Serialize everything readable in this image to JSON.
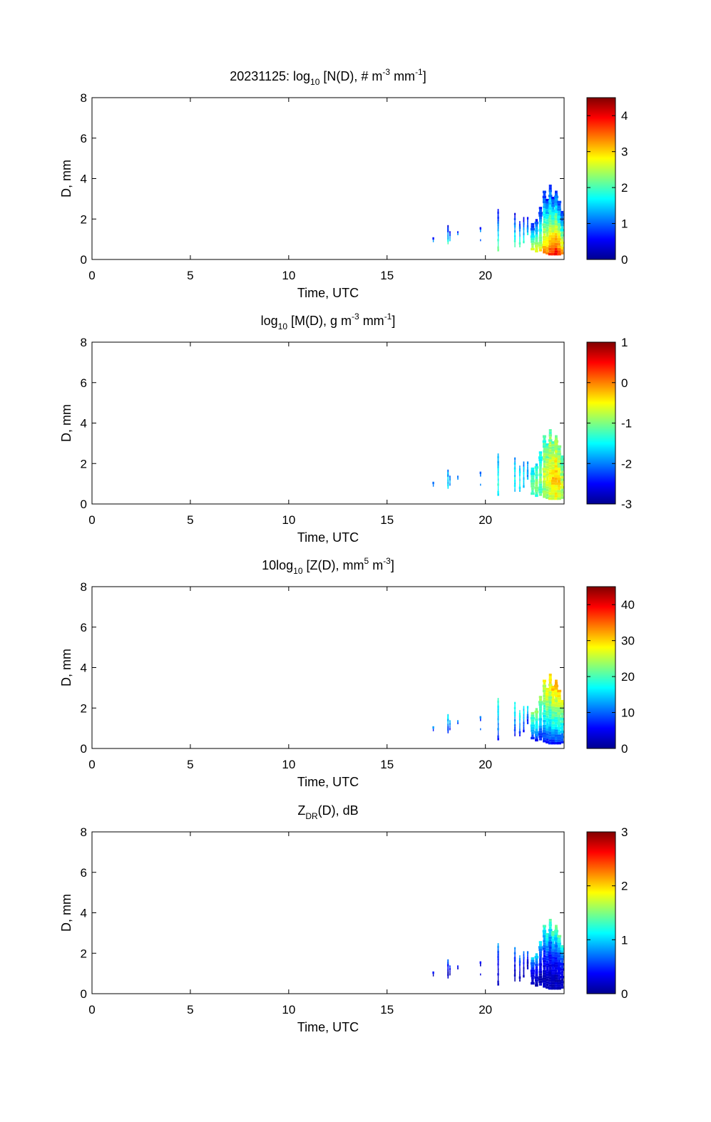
{
  "chart_data": [
    {
      "type": "heatmap",
      "title_parts": [
        {
          "text": "20231125: log",
          "shift": "none"
        },
        {
          "text": "10",
          "shift": "sub"
        },
        {
          "text": " [N(D), # m",
          "shift": "none"
        },
        {
          "text": "-3",
          "shift": "super"
        },
        {
          "text": " mm",
          "shift": "none"
        },
        {
          "text": "-1",
          "shift": "super"
        },
        {
          "text": "]",
          "shift": "none"
        }
      ],
      "xlabel": "Time, UTC",
      "ylabel": "D, mm",
      "xlim": [
        0,
        24
      ],
      "ylim": [
        0,
        8
      ],
      "xticks": [
        "0",
        "5",
        "10",
        "15",
        "20"
      ],
      "yticks": [
        "0",
        "2",
        "4",
        "6",
        "8"
      ],
      "colorbar": {
        "min": 0,
        "max": 4.5,
        "ticks": [
          "0",
          "1",
          "2",
          "3",
          "4"
        ]
      }
    },
    {
      "type": "heatmap",
      "title_parts": [
        {
          "text": "log",
          "shift": "none"
        },
        {
          "text": "10",
          "shift": "sub"
        },
        {
          "text": " [M(D), g m",
          "shift": "none"
        },
        {
          "text": "-3",
          "shift": "super"
        },
        {
          "text": " mm",
          "shift": "none"
        },
        {
          "text": "-1",
          "shift": "super"
        },
        {
          "text": "]",
          "shift": "none"
        }
      ],
      "xlabel": "Time, UTC",
      "ylabel": "D, mm",
      "xlim": [
        0,
        24
      ],
      "ylim": [
        0,
        8
      ],
      "xticks": [
        "0",
        "5",
        "10",
        "15",
        "20"
      ],
      "yticks": [
        "0",
        "2",
        "4",
        "6",
        "8"
      ],
      "colorbar": {
        "min": -3,
        "max": 1,
        "ticks": [
          "-3",
          "-2",
          "-1",
          "0",
          "1"
        ]
      }
    },
    {
      "type": "heatmap",
      "title_parts": [
        {
          "text": "10log",
          "shift": "none"
        },
        {
          "text": "10",
          "shift": "sub"
        },
        {
          "text": " [Z(D),  mm",
          "shift": "none"
        },
        {
          "text": "5",
          "shift": "super"
        },
        {
          "text": " m",
          "shift": "none"
        },
        {
          "text": "-3",
          "shift": "super"
        },
        {
          "text": "]",
          "shift": "none"
        }
      ],
      "xlabel": "Time, UTC",
      "ylabel": "D, mm",
      "xlim": [
        0,
        24
      ],
      "ylim": [
        0,
        8
      ],
      "xticks": [
        "0",
        "5",
        "10",
        "15",
        "20"
      ],
      "yticks": [
        "0",
        "2",
        "4",
        "6",
        "8"
      ],
      "colorbar": {
        "min": 0,
        "max": 45,
        "ticks": [
          "0",
          "10",
          "20",
          "30",
          "40"
        ]
      }
    },
    {
      "type": "heatmap",
      "title_parts": [
        {
          "text": "Z",
          "shift": "none"
        },
        {
          "text": "DR",
          "shift": "sub"
        },
        {
          "text": "(D), dB",
          "shift": "none"
        }
      ],
      "xlabel": "Time, UTC",
      "ylabel": "D, mm",
      "xlim": [
        0,
        24
      ],
      "ylim": [
        0,
        8
      ],
      "xticks": [
        "0",
        "5",
        "10",
        "15",
        "20"
      ],
      "yticks": [
        "0",
        "2",
        "4",
        "6",
        "8"
      ],
      "colorbar": {
        "min": 0,
        "max": 3,
        "ticks": [
          "0",
          "1",
          "2",
          "3"
        ]
      }
    }
  ],
  "events": [
    {
      "t": 17.35,
      "dmin": 0.85,
      "dmax": 1.1,
      "level": 0.35
    },
    {
      "t": 18.1,
      "dmin": 0.75,
      "dmax": 1.7,
      "level": 0.4
    },
    {
      "t": 18.2,
      "dmin": 0.9,
      "dmax": 1.4,
      "level": 0.35
    },
    {
      "t": 18.6,
      "dmin": 1.2,
      "dmax": 1.4,
      "level": 0.3
    },
    {
      "t": 19.75,
      "dmin": 1.35,
      "dmax": 1.6,
      "level": 0.3
    },
    {
      "t": 19.75,
      "dmin": 0.9,
      "dmax": 1.0,
      "level": 0.3
    },
    {
      "t": 20.65,
      "dmin": 0.4,
      "dmax": 2.5,
      "level": 0.45
    },
    {
      "t": 21.5,
      "dmin": 0.6,
      "dmax": 2.3,
      "level": 0.45
    },
    {
      "t": 21.75,
      "dmin": 0.6,
      "dmax": 1.9,
      "level": 0.45
    },
    {
      "t": 21.95,
      "dmin": 0.8,
      "dmax": 2.1,
      "level": 0.4
    },
    {
      "t": 22.15,
      "dmin": 1.2,
      "dmax": 2.1,
      "level": 0.35
    },
    {
      "t": 22.4,
      "dmin": 0.45,
      "dmax": 1.8,
      "level": 0.55
    },
    {
      "t": 22.6,
      "dmin": 0.35,
      "dmax": 2.0,
      "level": 0.6
    },
    {
      "t": 22.8,
      "dmin": 0.4,
      "dmax": 2.6,
      "level": 0.6
    },
    {
      "t": 23.0,
      "dmin": 0.3,
      "dmax": 3.4,
      "level": 0.7
    },
    {
      "t": 23.15,
      "dmin": 0.25,
      "dmax": 3.0,
      "level": 0.72
    },
    {
      "t": 23.3,
      "dmin": 0.2,
      "dmax": 3.7,
      "level": 0.78
    },
    {
      "t": 23.45,
      "dmin": 0.2,
      "dmax": 3.1,
      "level": 0.82
    },
    {
      "t": 23.6,
      "dmin": 0.2,
      "dmax": 3.4,
      "level": 0.85
    },
    {
      "t": 23.75,
      "dmin": 0.2,
      "dmax": 2.9,
      "level": 0.8
    },
    {
      "t": 23.9,
      "dmin": 0.25,
      "dmax": 2.4,
      "level": 0.7
    }
  ]
}
